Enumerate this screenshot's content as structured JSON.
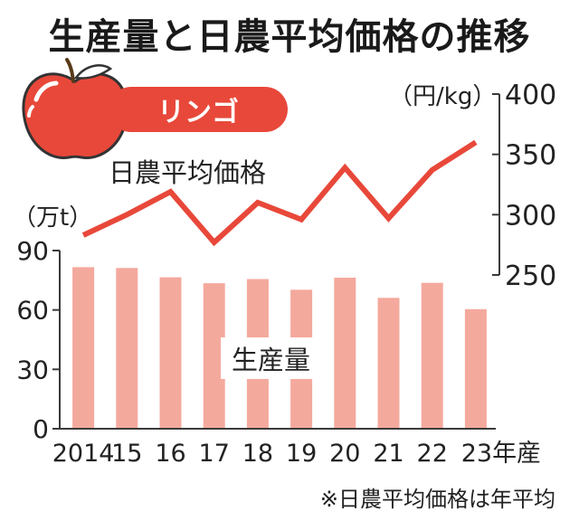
{
  "title": "生産量と日農平均価格の推移",
  "badge": {
    "label": "リンゴ"
  },
  "icons": {
    "fruit": "apple-icon"
  },
  "colors": {
    "accent": "#e8483a",
    "bar": "#f4a99d",
    "axis": "#3a3a3a"
  },
  "chart_data": {
    "type": "bar+line",
    "categories": [
      "2014",
      "15",
      "16",
      "17",
      "18",
      "19",
      "20",
      "21",
      "22",
      "23年産"
    ],
    "series": [
      {
        "name": "生産量",
        "type": "bar",
        "axis": "left",
        "values": [
          81.6,
          81.2,
          76.5,
          73.5,
          75.6,
          70.2,
          76.3,
          66.1,
          73.7,
          60.4
        ]
      },
      {
        "name": "日農平均価格",
        "type": "line",
        "axis": "right",
        "values": [
          283,
          300,
          319,
          277,
          310,
          296,
          339,
          297,
          337,
          360
        ]
      }
    ],
    "left_axis": {
      "unit": "（万t）",
      "ticks": [
        0,
        30,
        60,
        90
      ],
      "ylim": [
        0,
        90
      ]
    },
    "right_axis": {
      "unit": "（円/kg）",
      "ticks": [
        250,
        300,
        350,
        400
      ],
      "ylim": [
        250,
        400
      ]
    },
    "footnote": "※日農平均価格は年平均"
  }
}
